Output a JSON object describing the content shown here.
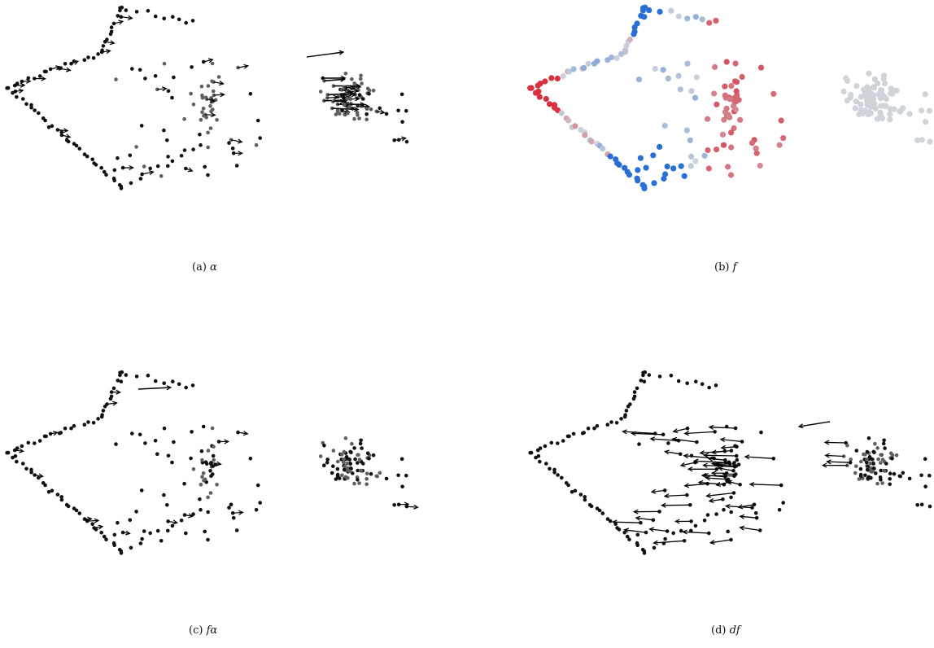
{
  "figure": {
    "panels": [
      {
        "id": "a",
        "caption_label": "(a)",
        "caption_symbol": "α"
      },
      {
        "id": "b",
        "caption_label": "(b)",
        "caption_symbol": "f"
      },
      {
        "id": "c",
        "caption_label": "(c)",
        "caption_symbol": "fα"
      },
      {
        "id": "d",
        "caption_label": "(d)",
        "caption_symbol": "df"
      }
    ]
  },
  "colors": {
    "dark_point": "#111111",
    "gray_point": "#5f5f5f",
    "arrow": "#000000",
    "f_positive": "#d7303f",
    "f_neutral": "#cfd3da",
    "f_negative": "#2a6fd4"
  },
  "chart_data": [
    {
      "type": "scatter",
      "title": "",
      "xlabel": "",
      "ylabel": "",
      "grid": false,
      "encoding": "vector field over a point cloud; value = gray level (0 = black, 1 = gray)",
      "x_range": [
        0,
        490
      ],
      "y_range": [
        0,
        240
      ]
    },
    {
      "type": "scatter",
      "title": "",
      "xlabel": "",
      "ylabel": "",
      "grid": false,
      "encoding": "scalar function on a point cloud, diverging red (positive) to gray (0) to blue (negative)",
      "x_range": [
        0,
        490
      ],
      "y_range": [
        0,
        240
      ]
    },
    {
      "type": "scatter",
      "title": "",
      "xlabel": "",
      "ylabel": "",
      "grid": false,
      "encoding": "vector field over a point cloud",
      "x_range": [
        0,
        490
      ],
      "y_range": [
        0,
        240
      ]
    },
    {
      "type": "scatter",
      "title": "",
      "xlabel": "",
      "ylabel": "",
      "grid": false,
      "encoding": "vector field over a point cloud (leftward arrows)",
      "x_range": [
        0,
        490
      ],
      "y_range": [
        0,
        240
      ]
    }
  ]
}
